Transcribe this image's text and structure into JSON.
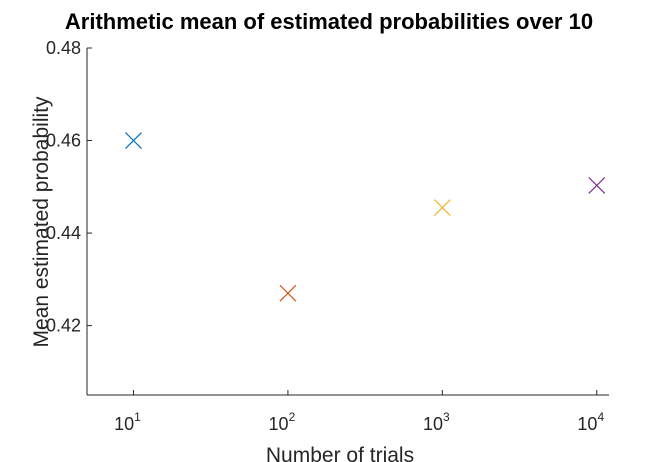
{
  "chart_data": {
    "type": "scatter",
    "title": "Arithmetic mean of estimated probabilities over 10",
    "xlabel": "Number of trials",
    "ylabel": "Mean estimated probability",
    "xscale": "log",
    "xlim": [
      5,
      12000
    ],
    "ylim": [
      0.405,
      0.48
    ],
    "xticks": [
      {
        "value": 10,
        "base": "10",
        "exp": "1"
      },
      {
        "value": 100,
        "base": "10",
        "exp": "2"
      },
      {
        "value": 1000,
        "base": "10",
        "exp": "3"
      },
      {
        "value": 10000,
        "base": "10",
        "exp": "4"
      }
    ],
    "yticks": [
      {
        "value": 0.42,
        "label": "0.42"
      },
      {
        "value": 0.44,
        "label": "0.44"
      },
      {
        "value": 0.46,
        "label": "0.46"
      },
      {
        "value": 0.48,
        "label": "0.48"
      }
    ],
    "grid": false,
    "marker": "x",
    "points": [
      {
        "x": 10,
        "y": 0.46,
        "color": "#0072bd"
      },
      {
        "x": 100,
        "y": 0.427,
        "color": "#d95319"
      },
      {
        "x": 1000,
        "y": 0.4455,
        "color": "#edb120"
      },
      {
        "x": 10000,
        "y": 0.4503,
        "color": "#7e2f8e"
      }
    ]
  }
}
